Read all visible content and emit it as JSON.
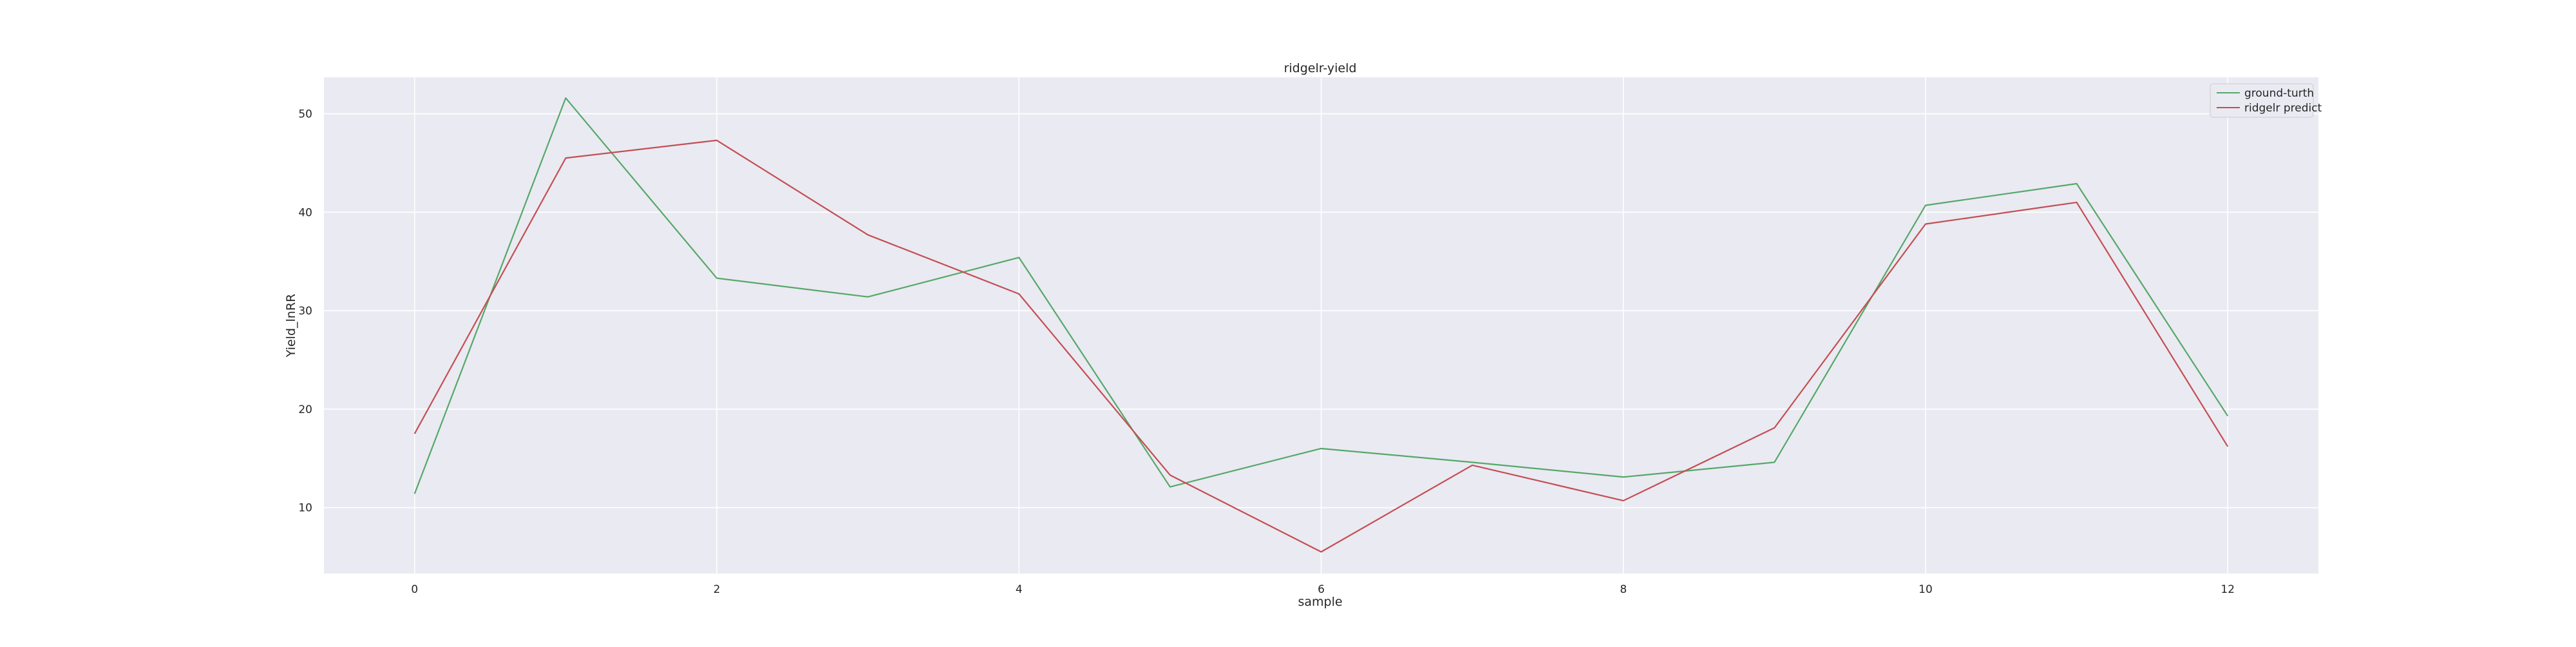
{
  "chart_data": {
    "type": "line",
    "title": "ridgelr-yield",
    "xlabel": "sample",
    "ylabel": "Yield_lnRR",
    "x": [
      0,
      1,
      2,
      3,
      4,
      5,
      6,
      7,
      8,
      9,
      10,
      11,
      12
    ],
    "xlim": [
      -0.6,
      12.6
    ],
    "ylim": [
      3.3,
      53.7
    ],
    "xticks": [
      "0",
      "2",
      "4",
      "6",
      "8",
      "10",
      "12"
    ],
    "yticks": [
      "10",
      "20",
      "30",
      "40",
      "50"
    ],
    "grid": true,
    "legend_position": "top-right",
    "series": [
      {
        "name": "ground-turth",
        "color": "#55a868",
        "values": [
          11.4,
          51.6,
          33.3,
          31.4,
          35.4,
          12.1,
          16.0,
          14.6,
          13.1,
          14.6,
          40.7,
          42.9,
          19.3
        ]
      },
      {
        "name": "ridgelr predict",
        "color": "#c44e52",
        "values": [
          17.5,
          45.5,
          47.3,
          37.7,
          31.7,
          13.3,
          5.5,
          14.3,
          10.7,
          18.1,
          38.8,
          41.0,
          16.2
        ]
      }
    ],
    "colors": {
      "plot_background": "#eaeaf2",
      "grid": "#ffffff",
      "legend_background": "#eaeaf2"
    }
  }
}
